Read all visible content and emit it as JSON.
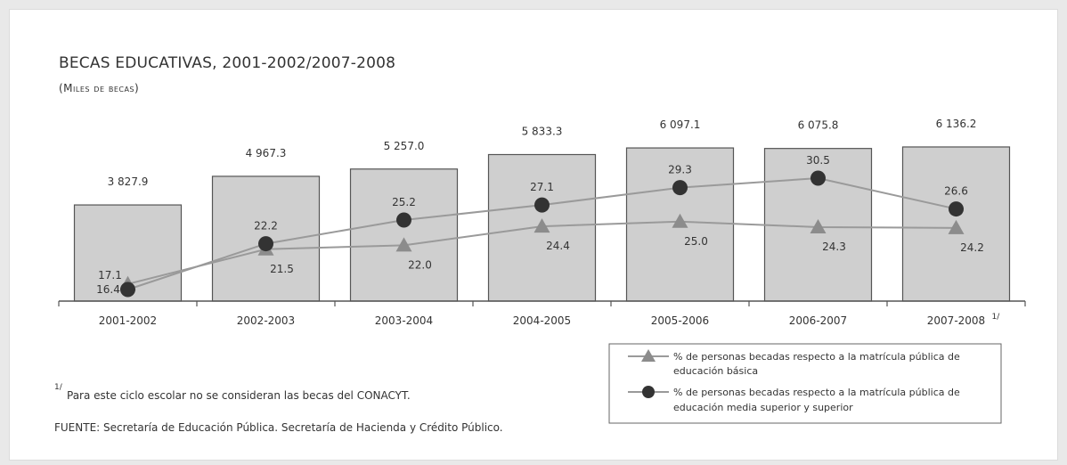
{
  "chart_data": {
    "type": "bar",
    "title": "BECAS EDUCATIVAS, 2001-2002/2007-2008",
    "subtitle": "(Miles de becas)",
    "categories": [
      "2001-2002",
      "2002-2003",
      "2003-2004",
      "2004-2005",
      "2005-2006",
      "2006-2007",
      "2007-2008"
    ],
    "last_category_note_mark": "1/",
    "bar_values": [
      3827.9,
      4967.3,
      5257.0,
      5833.3,
      6097.1,
      6075.8,
      6136.2
    ],
    "bar_value_labels": [
      "3 827.9",
      "4 967.3",
      "5 257.0",
      "5 833.3",
      "6 097.1",
      "6 075.8",
      "6 136.2"
    ],
    "series": [
      {
        "name": "% de personas becadas respecto a la matrícula pública de educación básica",
        "name_lines": [
          "% de personas becadas respecto a la matrícula pública de",
          "educación básica"
        ],
        "marker": "triangle",
        "values": [
          17.1,
          21.5,
          22.0,
          24.4,
          25.0,
          24.3,
          24.2
        ],
        "labels": [
          "17.1",
          "21.5",
          "22.0",
          "24.4",
          "25.0",
          "24.3",
          "24.2"
        ]
      },
      {
        "name": "% de personas becadas respecto a la matrícula pública de educación media superior y superior",
        "name_lines": [
          "% de personas becadas respecto a la matrícula pública de",
          "educación media superior y superior"
        ],
        "marker": "circle",
        "values": [
          16.4,
          22.2,
          25.2,
          27.1,
          29.3,
          30.5,
          26.6
        ],
        "labels": [
          "16.4",
          "22.2",
          "25.2",
          "27.1",
          "29.3",
          "30.5",
          "26.6"
        ]
      }
    ],
    "colors": {
      "bar_fill": "#cfcfcf",
      "bar_stroke": "#555555",
      "triangle_series": "#8c8c8c",
      "circle_series": "#333333",
      "line": "#9a9a9a"
    },
    "legend_position": "bottom-right"
  },
  "notes": {
    "footnote_mark": "1/",
    "footnote": "Para este ciclo escolar no se consideran las becas del CONACYT.",
    "source": "FUENTE: Secretaría de Educación Pública. Secretaría de Hacienda y Crédito Público."
  }
}
